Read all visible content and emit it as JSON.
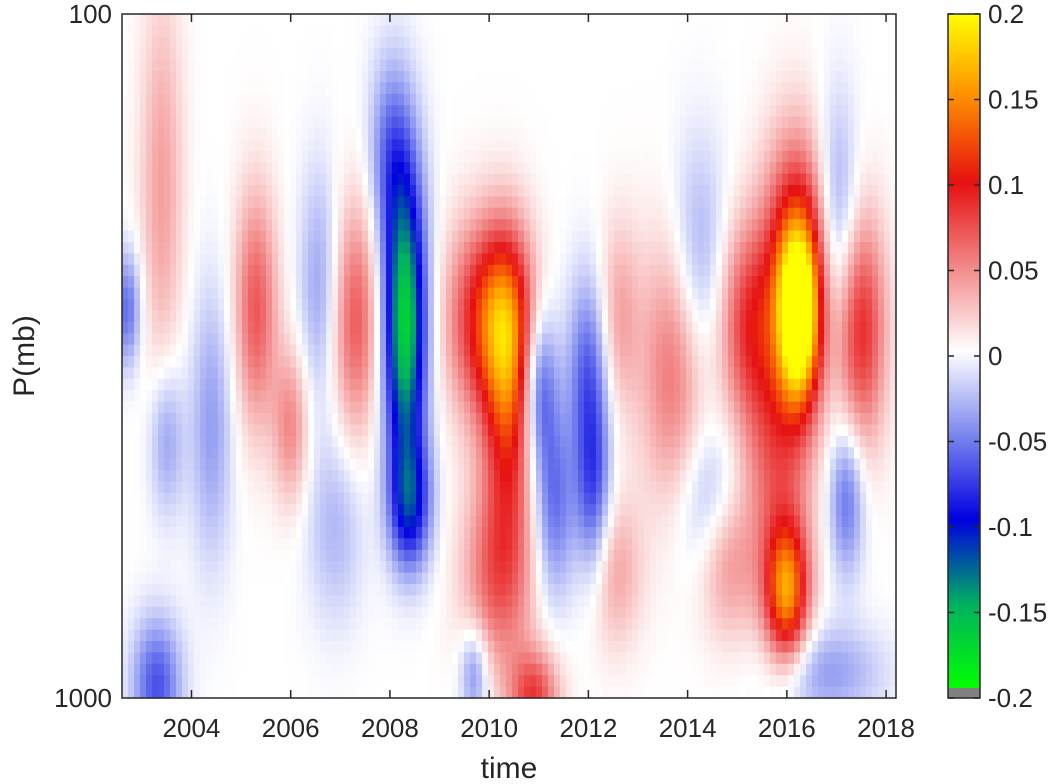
{
  "chart_data": {
    "type": "heatmap",
    "title": "",
    "xlabel": "time",
    "ylabel": "P(mb)",
    "xlim": [
      2002.6,
      2018.2
    ],
    "x_ticks": [
      2004,
      2006,
      2008,
      2010,
      2012,
      2014,
      2016,
      2018
    ],
    "x_tick_labels": [
      "2004",
      "2006",
      "2008",
      "2010",
      "2012",
      "2014",
      "2016",
      "2018"
    ],
    "y_scale": "log",
    "ylim": [
      100,
      1000
    ],
    "y_direction": "reverse",
    "y_ticks": [
      100,
      1000
    ],
    "y_tick_labels": [
      "100",
      "1000"
    ],
    "colorbar": {
      "clim": [
        -0.2,
        0.2
      ],
      "ticks": [
        0.2,
        0.15,
        0.1,
        0.05,
        0,
        -0.05,
        -0.1,
        -0.15,
        -0.2
      ],
      "tick_labels": [
        "0.2",
        "0.15",
        "0.1",
        "0.05",
        "0",
        "-0.05",
        "-0.1",
        "-0.15",
        "-0.2"
      ],
      "stops": [
        {
          "value": -0.2,
          "color": "#00ff00"
        },
        {
          "value": -0.15,
          "color": "#00b060"
        },
        {
          "value": -0.1,
          "color": "#0000e0"
        },
        {
          "value": -0.05,
          "color": "#7a86ee"
        },
        {
          "value": 0,
          "color": "#ffffff"
        },
        {
          "value": 0.05,
          "color": "#f28888"
        },
        {
          "value": 0.1,
          "color": "#e61010"
        },
        {
          "value": 0.15,
          "color": "#ff8c00"
        },
        {
          "value": 0.2,
          "color": "#ffff00"
        }
      ],
      "under_color": "#808080"
    },
    "grid": false,
    "features": [
      {
        "t": 2010.3,
        "p": 280,
        "value": 0.14,
        "st": 0.4,
        "sp": 0.1
      },
      {
        "t": 2016.25,
        "p": 280,
        "value": 0.19,
        "st": 0.3,
        "sp": 0.09
      },
      {
        "t": 2016.2,
        "p": 220,
        "value": 0.1,
        "st": 0.45,
        "sp": 0.12
      },
      {
        "t": 2016.0,
        "p": 700,
        "value": 0.14,
        "st": 0.3,
        "sp": 0.07
      },
      {
        "t": 2015.8,
        "p": 420,
        "value": 0.07,
        "st": 0.5,
        "sp": 0.16
      },
      {
        "t": 2009.6,
        "p": 280,
        "value": 0.06,
        "st": 0.4,
        "sp": 0.1
      },
      {
        "t": 2010.4,
        "p": 400,
        "value": 0.08,
        "st": 0.35,
        "sp": 0.12
      },
      {
        "t": 2017.5,
        "p": 290,
        "value": 0.09,
        "st": 0.35,
        "sp": 0.12
      },
      {
        "t": 2015.2,
        "p": 280,
        "value": 0.07,
        "st": 0.4,
        "sp": 0.1
      },
      {
        "t": 2013.7,
        "p": 330,
        "value": 0.06,
        "st": 0.45,
        "sp": 0.14
      },
      {
        "t": 2012.6,
        "p": 280,
        "value": 0.04,
        "st": 0.3,
        "sp": 0.1
      },
      {
        "t": 2007.3,
        "p": 280,
        "value": 0.07,
        "st": 0.35,
        "sp": 0.12
      },
      {
        "t": 2005.3,
        "p": 270,
        "value": 0.07,
        "st": 0.3,
        "sp": 0.12
      },
      {
        "t": 2003.4,
        "p": 180,
        "value": 0.04,
        "st": 0.3,
        "sp": 0.2
      },
      {
        "t": 2006.0,
        "p": 400,
        "value": 0.05,
        "st": 0.25,
        "sp": 0.08
      },
      {
        "t": 2010.2,
        "p": 660,
        "value": 0.07,
        "st": 0.5,
        "sp": 0.1
      },
      {
        "t": 2014.8,
        "p": 620,
        "value": 0.05,
        "st": 0.4,
        "sp": 0.08
      },
      {
        "t": 2010.9,
        "p": 1000,
        "value": 0.08,
        "st": 0.35,
        "sp": 0.05
      },
      {
        "t": 2012.5,
        "p": 650,
        "value": 0.04,
        "st": 0.4,
        "sp": 0.08
      },
      {
        "t": 2008.3,
        "p": 240,
        "value": -0.11,
        "st": 0.3,
        "sp": 0.14
      },
      {
        "t": 2008.3,
        "p": 330,
        "value": -0.09,
        "st": 0.3,
        "sp": 0.12
      },
      {
        "t": 2008.4,
        "p": 520,
        "value": -0.1,
        "st": 0.3,
        "sp": 0.07
      },
      {
        "t": 2011.0,
        "p": 350,
        "value": -0.07,
        "st": 0.25,
        "sp": 0.08
      },
      {
        "t": 2012.0,
        "p": 330,
        "value": -0.06,
        "st": 0.3,
        "sp": 0.1
      },
      {
        "t": 2012.1,
        "p": 500,
        "value": -0.07,
        "st": 0.25,
        "sp": 0.1
      },
      {
        "t": 2011.3,
        "p": 520,
        "value": -0.06,
        "st": 0.3,
        "sp": 0.1
      },
      {
        "t": 2017.2,
        "p": 510,
        "value": -0.06,
        "st": 0.25,
        "sp": 0.08
      },
      {
        "t": 2017.0,
        "p": 200,
        "value": -0.05,
        "st": 0.3,
        "sp": 0.12
      },
      {
        "t": 2014.2,
        "p": 230,
        "value": -0.04,
        "st": 0.4,
        "sp": 0.12
      },
      {
        "t": 2004.4,
        "p": 400,
        "value": -0.04,
        "st": 0.3,
        "sp": 0.14
      },
      {
        "t": 2003.5,
        "p": 420,
        "value": -0.04,
        "st": 0.25,
        "sp": 0.08
      },
      {
        "t": 2003.3,
        "p": 960,
        "value": -0.07,
        "st": 0.35,
        "sp": 0.07
      },
      {
        "t": 2002.7,
        "p": 270,
        "value": -0.06,
        "st": 0.2,
        "sp": 0.06
      },
      {
        "t": 2009.7,
        "p": 920,
        "value": -0.05,
        "st": 0.2,
        "sp": 0.05
      },
      {
        "t": 2006.6,
        "p": 250,
        "value": -0.04,
        "st": 0.3,
        "sp": 0.12
      },
      {
        "t": 2014.5,
        "p": 520,
        "value": -0.04,
        "st": 0.5,
        "sp": 0.08
      },
      {
        "t": 2008.0,
        "p": 160,
        "value": -0.05,
        "st": 0.3,
        "sp": 0.1
      },
      {
        "t": 2016.8,
        "p": 920,
        "value": -0.04,
        "st": 0.8,
        "sp": 0.05
      },
      {
        "t": 2006.9,
        "p": 560,
        "value": -0.03,
        "st": 0.4,
        "sp": 0.1
      }
    ]
  }
}
